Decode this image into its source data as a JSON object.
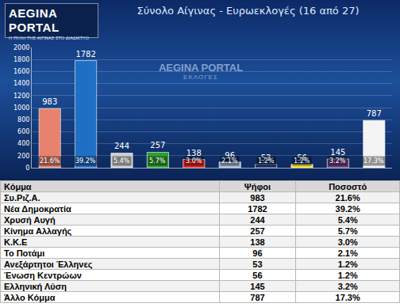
{
  "logos": {
    "main": "AEGINA PORTAL",
    "tagline": "Η ΠΥΛΗ ΤΗΣ ΑΙΓΙΝΑΣ ΣΤΟ ΔΙΑΔΙΚΤΥΟ",
    "center": "AEGINA PORTAL",
    "center_sub": "ΕΚΛΟΓΕΣ"
  },
  "chart_data": {
    "type": "bar",
    "title": "Σύνολο Αίγινας - Ευρωεκλογές (16 από 27)",
    "categories": [
      null,
      null,
      null,
      null,
      null,
      null,
      null,
      null,
      null,
      null
    ],
    "values": [
      983,
      1782,
      244,
      257,
      138,
      96,
      53,
      56,
      145,
      787
    ],
    "colors": [
      "#e8826e",
      "#1f6fc4",
      "#cfcfcf",
      "#2ca02c",
      "#e02020",
      "#a8b8d0",
      "#1a2a70",
      "#f0e020",
      "#6a3d7a",
      "#f4f4f4"
    ],
    "annotations": [
      "21.6%",
      "39.2%",
      "5.4%",
      "5.7%",
      "3.0%",
      "2.1%",
      "1.2%",
      "1.2%",
      "3.2%",
      "17.3%"
    ],
    "ylim": [
      0,
      2000
    ],
    "yticks": [
      0,
      200,
      400,
      600,
      800,
      1000,
      1200,
      1400,
      1600,
      1800,
      2000
    ],
    "grid": true,
    "data_labels": true,
    "tick_labels": "y"
  },
  "table": {
    "header": [
      "Κόμμα",
      "Ψήφοι",
      "Ποσοστό"
    ],
    "rows": [
      [
        "Συ.Ριζ.Α.",
        "983",
        "21.6%"
      ],
      [
        "Νέα Δημοκρατία",
        "1782",
        "39.2%"
      ],
      [
        "Χρυσή Αυγή",
        "244",
        "5.4%"
      ],
      [
        "Κίνημα Αλλαγής",
        "257",
        "5.7%"
      ],
      [
        "Κ.Κ.Ε",
        "138",
        "3.0%"
      ],
      [
        "Το Ποτάμι",
        "96",
        "2.1%"
      ],
      [
        "Ανεξάρτητοι Έλληνες",
        "53",
        "1.2%"
      ],
      [
        "Ένωση Κεντρώων",
        "56",
        "1.2%"
      ],
      [
        "Ελληνική Λύση",
        "145",
        "3.2%"
      ],
      [
        "Άλλο Κόμμα",
        "787",
        "17.3%"
      ]
    ]
  }
}
